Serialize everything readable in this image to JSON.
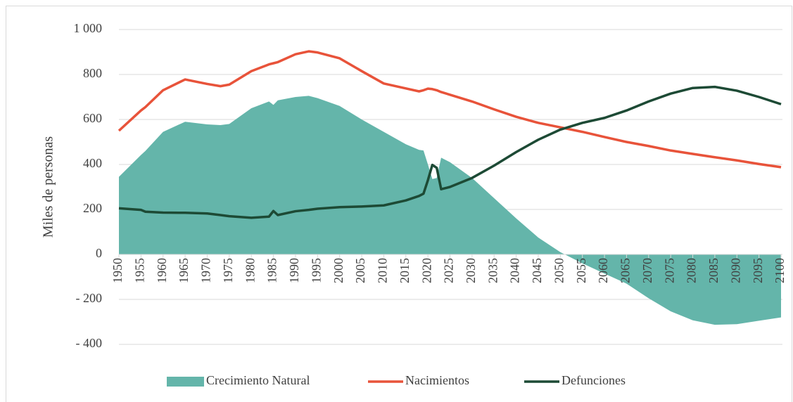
{
  "chart_data": {
    "type": "area-line",
    "y_label": "Miles de personas",
    "x": [
      1950,
      1955,
      1956,
      1960,
      1965,
      1970,
      1973,
      1975,
      1980,
      1984,
      1985,
      1986,
      1990,
      1993,
      1995,
      2000,
      2005,
      2010,
      2015,
      2018,
      2019,
      2020,
      2021,
      2022,
      2023,
      2025,
      2030,
      2035,
      2040,
      2045,
      2050,
      2055,
      2060,
      2065,
      2070,
      2075,
      2080,
      2085,
      2090,
      2095,
      2100
    ],
    "series": [
      {
        "name": "Crecimiento Natural",
        "kind": "area",
        "color": "#64b5aa",
        "values": [
          345,
          442,
          460,
          545,
          590,
          578,
          575,
          580,
          650,
          680,
          665,
          685,
          700,
          705,
          695,
          660,
          600,
          545,
          490,
          465,
          462,
          400,
          335,
          340,
          430,
          410,
          340,
          250,
          160,
          75,
          10,
          -40,
          -85,
          -130,
          -195,
          -253,
          -293,
          -313,
          -310,
          -295,
          -280
        ]
      },
      {
        "name": "Nacimientos",
        "kind": "line",
        "color": "#e8533a",
        "values": [
          550,
          640,
          655,
          730,
          778,
          758,
          748,
          755,
          815,
          845,
          850,
          855,
          890,
          903,
          898,
          872,
          815,
          760,
          738,
          725,
          730,
          737,
          735,
          730,
          722,
          710,
          680,
          645,
          612,
          585,
          565,
          545,
          522,
          500,
          482,
          462,
          447,
          432,
          418,
          402,
          388
        ]
      },
      {
        "name": "Defunciones",
        "kind": "line",
        "color": "#1d4a35",
        "values": [
          205,
          198,
          190,
          186,
          185,
          182,
          175,
          170,
          163,
          168,
          193,
          175,
          192,
          198,
          203,
          210,
          213,
          218,
          240,
          260,
          270,
          330,
          398,
          385,
          290,
          300,
          340,
          395,
          455,
          510,
          555,
          585,
          607,
          640,
          680,
          715,
          740,
          745,
          728,
          700,
          668
        ]
      }
    ],
    "xlim": [
      1950,
      2100
    ],
    "xticks": [
      1950,
      1955,
      1960,
      1965,
      1970,
      1975,
      1980,
      1985,
      1990,
      1995,
      2000,
      2005,
      2010,
      2015,
      2020,
      2025,
      2030,
      2035,
      2040,
      2045,
      2050,
      2055,
      2060,
      2065,
      2070,
      2075,
      2080,
      2085,
      2090,
      2095,
      2100
    ],
    "ylim": [
      -400,
      1000
    ],
    "yticks": [
      {
        "value": -400,
        "label": "- 400"
      },
      {
        "value": -200,
        "label": "- 200"
      },
      0,
      200,
      400,
      600,
      800,
      {
        "value": 1000,
        "label": "1 000"
      }
    ],
    "grid": true,
    "legend": "bottom"
  }
}
